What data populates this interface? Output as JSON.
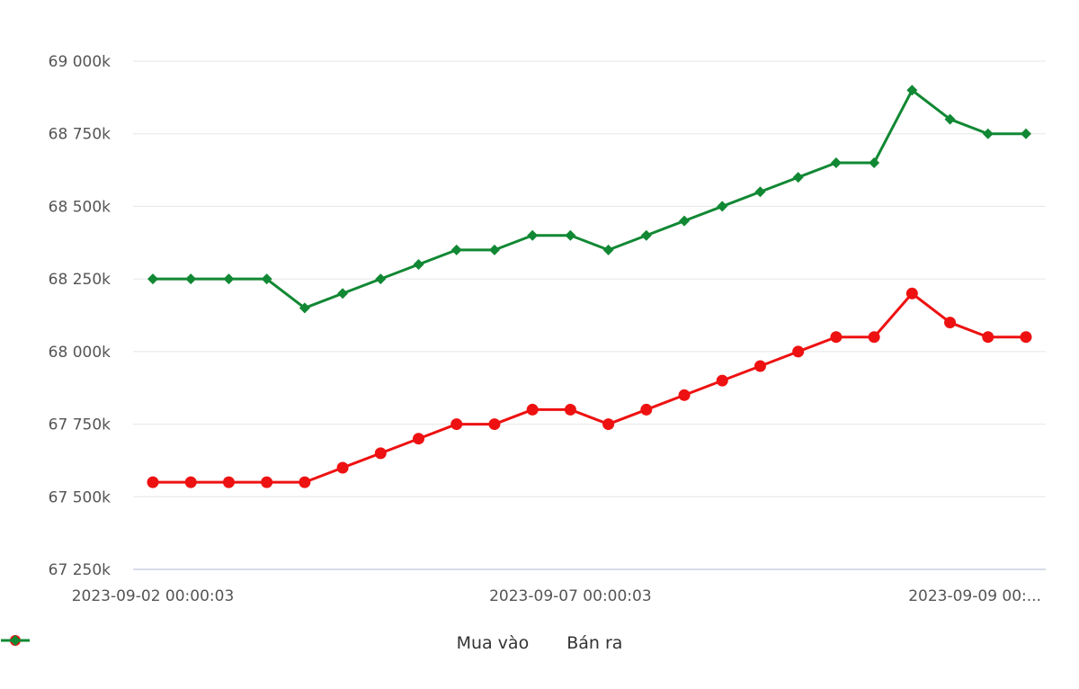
{
  "chart_data": {
    "type": "line",
    "title": "",
    "xlabel": "",
    "ylabel": "",
    "ylim": [
      67250,
      69000
    ],
    "y_ticks": [
      67250,
      67500,
      67750,
      68000,
      68250,
      68500,
      68750,
      69000
    ],
    "y_tick_labels": [
      "67 250k",
      "67 500k",
      "67 750k",
      "68 000k",
      "68 250k",
      "68 500k",
      "68 750k",
      "69 000k"
    ],
    "x_tick_labels": [
      "2023-09-02 00:00:03",
      "2023-09-07 00:00:03",
      "2023-09-09 00:..."
    ],
    "x_tick_indices": [
      0,
      11,
      23
    ],
    "grid": true,
    "legend_position": "bottom",
    "series": [
      {
        "name": "Mua vào",
        "color": "#ee1111",
        "marker": "circle",
        "values": [
          67550,
          67550,
          67550,
          67550,
          67550,
          67600,
          67650,
          67700,
          67750,
          67750,
          67800,
          67800,
          67750,
          67800,
          67850,
          67900,
          67950,
          68000,
          68050,
          68050,
          68200,
          68100,
          68050,
          68050
        ]
      },
      {
        "name": "Bán ra",
        "color": "#118833",
        "marker": "diamond",
        "values": [
          68250,
          68250,
          68250,
          68250,
          68150,
          68200,
          68250,
          68300,
          68350,
          68350,
          68400,
          68400,
          68350,
          68400,
          68450,
          68500,
          68550,
          68600,
          68650,
          68650,
          68900,
          68800,
          68750,
          68750
        ]
      }
    ]
  }
}
